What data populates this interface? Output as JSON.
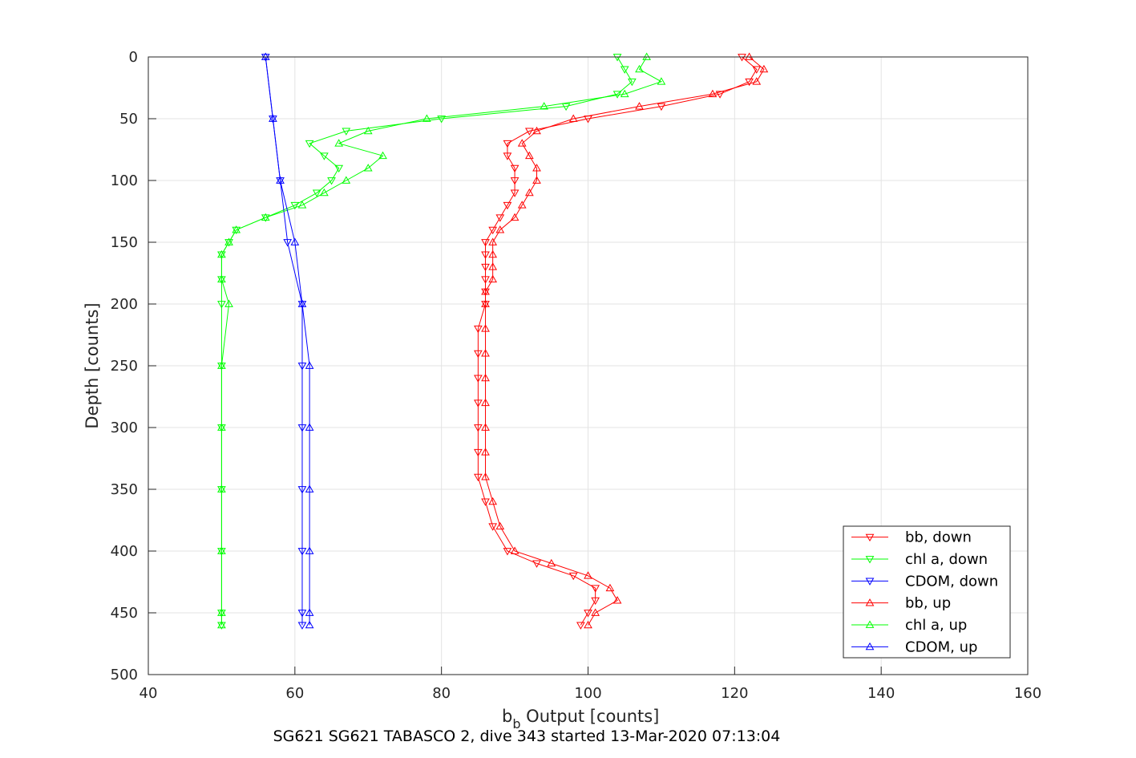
{
  "chart_data": {
    "type": "line",
    "xlabel_main": "b",
    "xlabel_sub": "b",
    "xlabel_rest": " Output [counts]",
    "ylabel": "Depth [counts]",
    "subtitle": "SG621 SG621 TABASCO 2, dive 343 started 13-Mar-2020 07:13:04",
    "xlim": [
      40,
      160
    ],
    "ylim": [
      0,
      500
    ],
    "y_reversed": true,
    "grid": true,
    "x_ticks": [
      "40",
      "60",
      "80",
      "100",
      "120",
      "140",
      "160"
    ],
    "y_ticks": [
      "0",
      "50",
      "100",
      "150",
      "200",
      "250",
      "300",
      "350",
      "400",
      "450",
      "500"
    ],
    "legend_position": "bottom-right",
    "series": [
      {
        "name": "bb, down",
        "color": "#ff0000",
        "marker": "triangle-down",
        "depth": [
          0,
          10,
          20,
          30,
          40,
          50,
          60,
          70,
          80,
          90,
          100,
          110,
          120,
          130,
          140,
          150,
          160,
          170,
          180,
          190,
          200,
          220,
          240,
          260,
          280,
          300,
          320,
          340,
          360,
          380,
          400,
          410,
          420,
          430,
          440,
          450,
          460
        ],
        "values": [
          121,
          123,
          122,
          118,
          110,
          100,
          92,
          89,
          89,
          90,
          90,
          90,
          89,
          88,
          87,
          86,
          86,
          86,
          86,
          86,
          86,
          85,
          85,
          85,
          85,
          85,
          85,
          85,
          86,
          87,
          89,
          93,
          98,
          101,
          101,
          100,
          99
        ]
      },
      {
        "name": "chl a, down",
        "color": "#00ff00",
        "marker": "triangle-down",
        "depth": [
          0,
          10,
          20,
          30,
          40,
          50,
          60,
          70,
          80,
          90,
          100,
          110,
          120,
          130,
          140,
          150,
          160,
          180,
          200,
          250,
          300,
          350,
          400,
          450,
          460
        ],
        "values": [
          104,
          105,
          106,
          104,
          97,
          80,
          67,
          62,
          64,
          66,
          65,
          63,
          60,
          56,
          52,
          51,
          50,
          50,
          50,
          50,
          50,
          50,
          50,
          50,
          50
        ]
      },
      {
        "name": "CDOM, down",
        "color": "#0000ff",
        "marker": "triangle-down",
        "depth": [
          0,
          50,
          100,
          150,
          200,
          250,
          300,
          350,
          400,
          450,
          460
        ],
        "values": [
          56,
          57,
          58,
          59,
          61,
          61,
          61,
          61,
          61,
          61,
          61
        ]
      },
      {
        "name": "bb, up",
        "color": "#ff0000",
        "marker": "triangle-up",
        "depth": [
          0,
          10,
          20,
          30,
          40,
          50,
          60,
          70,
          80,
          90,
          100,
          110,
          120,
          130,
          140,
          150,
          160,
          170,
          180,
          190,
          200,
          220,
          240,
          260,
          280,
          300,
          320,
          340,
          360,
          380,
          400,
          410,
          420,
          430,
          440,
          450,
          460
        ],
        "values": [
          122,
          124,
          123,
          117,
          107,
          98,
          93,
          91,
          92,
          93,
          93,
          92,
          91,
          90,
          88,
          87,
          87,
          87,
          87,
          86,
          86,
          86,
          86,
          86,
          86,
          86,
          86,
          86,
          87,
          88,
          90,
          95,
          100,
          103,
          104,
          101,
          100
        ]
      },
      {
        "name": "chl a, up",
        "color": "#00ff00",
        "marker": "triangle-up",
        "depth": [
          0,
          10,
          20,
          30,
          40,
          50,
          60,
          70,
          80,
          90,
          100,
          110,
          120,
          130,
          140,
          150,
          160,
          180,
          200,
          250,
          300,
          350,
          400,
          450,
          460
        ],
        "values": [
          108,
          107,
          110,
          105,
          94,
          78,
          70,
          66,
          72,
          70,
          67,
          64,
          61,
          56,
          52,
          51,
          50,
          50,
          51,
          50,
          50,
          50,
          50,
          50,
          50
        ]
      },
      {
        "name": "CDOM, up",
        "color": "#0000ff",
        "marker": "triangle-up",
        "depth": [
          0,
          50,
          100,
          150,
          200,
          250,
          300,
          350,
          400,
          450,
          460
        ],
        "values": [
          56,
          57,
          58,
          60,
          61,
          62,
          62,
          62,
          62,
          62,
          62
        ]
      }
    ]
  }
}
